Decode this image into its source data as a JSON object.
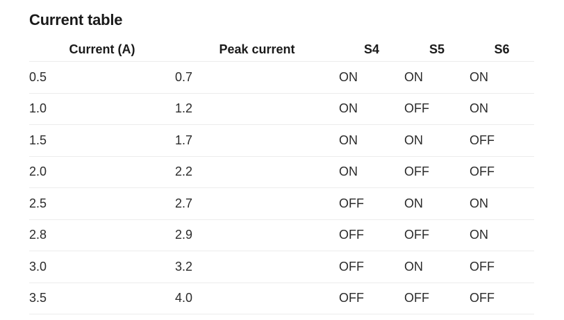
{
  "title": "Current table",
  "table": {
    "headers": [
      "Current (A)",
      "Peak current",
      "S4",
      "S5",
      "S6"
    ],
    "rows": [
      [
        "0.5",
        "0.7",
        "ON",
        "ON",
        "ON"
      ],
      [
        "1.0",
        "1.2",
        "ON",
        "OFF",
        "ON"
      ],
      [
        "1.5",
        "1.7",
        "ON",
        "ON",
        "OFF"
      ],
      [
        "2.0",
        "2.2",
        "ON",
        "OFF",
        "OFF"
      ],
      [
        "2.5",
        "2.7",
        "OFF",
        "ON",
        "ON"
      ],
      [
        "2.8",
        "2.9",
        "OFF",
        "OFF",
        "ON"
      ],
      [
        "3.0",
        "3.2",
        "OFF",
        "ON",
        "OFF"
      ],
      [
        "3.5",
        "4.0",
        "OFF",
        "OFF",
        "OFF"
      ]
    ]
  }
}
